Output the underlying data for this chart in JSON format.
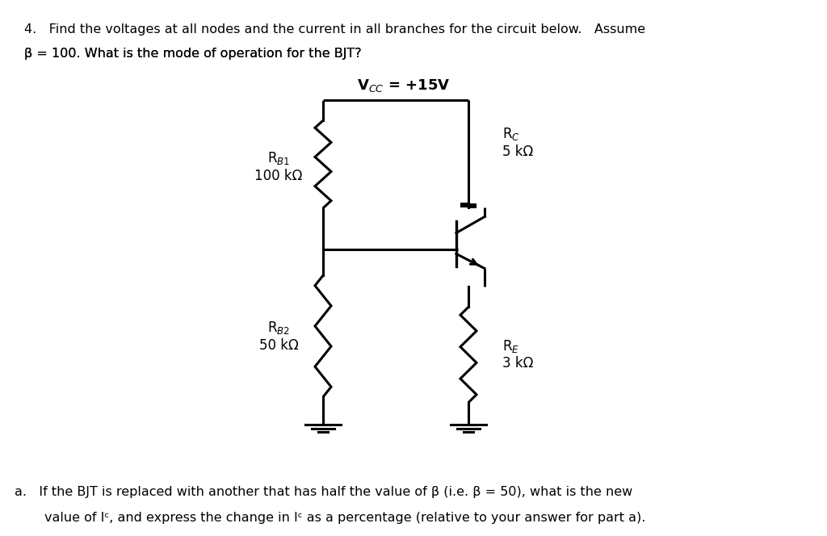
{
  "bg_color": "#ffffff",
  "line_color": "#000000",
  "line_width": 2.2,
  "fig_width": 10.24,
  "fig_height": 6.64,
  "question_text": "4. Find the voltages at all nodes and the current in all branches for the circuit below. Assume\nβ = 100. What is the mode of operation for the BJT?",
  "sub_text": "a. If the BJT is replaced with another that has half the value of β (i.e. β = 50), what is the new\n   value of I₂, and express the change in I₂ as a percentage (relative to your answer for part a).",
  "vcc_label": "V$_{CC}$ = +15V",
  "rb1_label": "R$_{B1}$\n100 kΩ",
  "rb2_label": "R$_{B2}$\n50 kΩ",
  "rc_label": "R$_C$\n5 kΩ",
  "re_label": "R$_E$\n3 kΩ"
}
